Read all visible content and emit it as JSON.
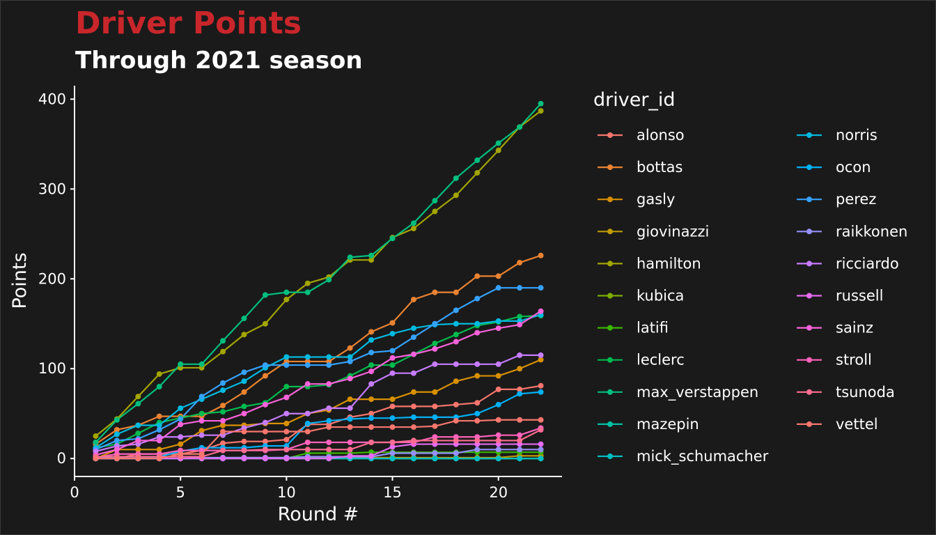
{
  "chart_data": {
    "type": "line",
    "title": "Driver Points",
    "subtitle": "Through 2021 season",
    "xlabel": "Round #",
    "ylabel": "Points",
    "xlim": [
      0,
      23
    ],
    "ylim": [
      -20,
      415
    ],
    "x_ticks": [
      0,
      5,
      10,
      15,
      20
    ],
    "y_ticks": [
      0,
      100,
      200,
      300,
      400
    ],
    "legend_title": "driver_id",
    "legend_position": "right",
    "grid": false,
    "colors": {
      "background": "#1a1a1a",
      "title": "#c8262b",
      "text": "#ffffff",
      "axis": "#ffffff"
    },
    "x": [
      1,
      2,
      3,
      4,
      5,
      6,
      7,
      8,
      9,
      10,
      11,
      12,
      13,
      14,
      15,
      16,
      17,
      18,
      19,
      20,
      21,
      22
    ],
    "series": [
      {
        "name": "alonso",
        "color": "#F8766D",
        "values": [
          0,
          0,
          5,
          5,
          5,
          9,
          17,
          19,
          19,
          21,
          38,
          38,
          46,
          50,
          58,
          58,
          58,
          60,
          62,
          77,
          77,
          81
        ]
      },
      {
        "name": "bottas",
        "color": "#EA8331",
        "values": [
          16,
          32,
          37,
          47,
          47,
          47,
          59,
          74,
          92,
          108,
          108,
          108,
          123,
          141,
          151,
          177,
          185,
          185,
          203,
          203,
          218,
          226
        ]
      },
      {
        "name": "gasly",
        "color": "#D89000",
        "values": [
          0,
          10,
          10,
          10,
          16,
          31,
          37,
          37,
          39,
          39,
          50,
          54,
          66,
          66,
          66,
          74,
          74,
          86,
          92,
          92,
          100,
          110
        ]
      },
      {
        "name": "giovinazzi",
        "color": "#C09B00",
        "values": [
          0,
          0,
          0,
          0,
          0,
          0,
          1,
          1,
          1,
          1,
          1,
          1,
          1,
          1,
          1,
          1,
          1,
          1,
          1,
          1,
          3,
          3
        ]
      },
      {
        "name": "hamilton",
        "color": "#A3A500",
        "values": [
          25,
          44,
          69,
          94,
          101,
          101,
          119,
          138,
          150,
          177,
          195,
          202,
          221,
          221,
          246,
          256,
          275,
          293,
          318,
          343,
          369,
          387
        ]
      },
      {
        "name": "kubica",
        "color": "#7CAE00",
        "values": [
          0,
          0,
          0,
          0,
          0,
          0,
          0,
          0,
          0,
          0,
          0,
          0,
          0,
          0,
          0,
          0,
          0,
          0,
          0,
          0,
          0,
          0
        ]
      },
      {
        "name": "latifi",
        "color": "#39B600",
        "values": [
          0,
          0,
          0,
          0,
          0,
          0,
          0,
          0,
          0,
          0,
          6,
          6,
          6,
          7,
          7,
          7,
          7,
          7,
          7,
          7,
          7,
          7
        ]
      },
      {
        "name": "leclerc",
        "color": "#00BB4E",
        "values": [
          12,
          16,
          28,
          40,
          45,
          50,
          52,
          58,
          62,
          80,
          80,
          82,
          92,
          104,
          104,
          116,
          128,
          138,
          148,
          152,
          158,
          159
        ]
      },
      {
        "name": "max_verstappen",
        "color": "#00BF7D",
        "values": [
          18,
          43,
          61,
          80,
          105,
          105,
          131,
          156,
          182,
          185,
          185,
          199,
          224,
          226,
          245,
          262,
          287,
          312,
          332,
          351,
          369,
          395
        ]
      },
      {
        "name": "mazepin",
        "color": "#00C1A3",
        "values": [
          0,
          0,
          0,
          0,
          0,
          0,
          0,
          0,
          0,
          0,
          0,
          0,
          0,
          0,
          0,
          0,
          0,
          0,
          0,
          0,
          0,
          0
        ]
      },
      {
        "name": "mick_schumacher",
        "color": "#00BFC4",
        "values": [
          0,
          0,
          0,
          0,
          0,
          0,
          0,
          0,
          0,
          0,
          0,
          0,
          0,
          0,
          0,
          0,
          0,
          0,
          0,
          0,
          0,
          0
        ]
      },
      {
        "name": "norris",
        "color": "#00BAE0",
        "values": [
          12,
          27,
          37,
          37,
          56,
          66,
          76,
          86,
          101,
          113,
          113,
          113,
          113,
          132,
          139,
          145,
          149,
          150,
          150,
          153,
          153,
          160
        ]
      },
      {
        "name": "ocon",
        "color": "#00B0F6",
        "values": [
          0,
          2,
          2,
          2,
          8,
          12,
          12,
          12,
          14,
          14,
          39,
          42,
          44,
          45,
          45,
          46,
          46,
          46,
          50,
          60,
          72,
          74
        ]
      },
      {
        "name": "perez",
        "color": "#35A2FF",
        "values": [
          10,
          20,
          22,
          32,
          44,
          69,
          84,
          96,
          104,
          104,
          104,
          104,
          108,
          118,
          120,
          135,
          150,
          165,
          178,
          190,
          190,
          190
        ]
      },
      {
        "name": "raikkonen",
        "color": "#9590FF",
        "values": [
          0,
          0,
          0,
          0,
          0,
          1,
          1,
          1,
          1,
          1,
          2,
          2,
          2,
          2,
          6,
          6,
          6,
          6,
          10,
          10,
          10,
          10
        ]
      },
      {
        "name": "ricciardo",
        "color": "#C77CFF",
        "values": [
          8,
          14,
          16,
          24,
          24,
          26,
          26,
          34,
          40,
          50,
          50,
          56,
          56,
          83,
          95,
          95,
          105,
          105,
          105,
          105,
          115,
          115
        ]
      },
      {
        "name": "russell",
        "color": "#E76BF3",
        "values": [
          0,
          0,
          0,
          0,
          0,
          0,
          0,
          0,
          0,
          0,
          0,
          0,
          3,
          3,
          13,
          16,
          16,
          16,
          16,
          16,
          16,
          16
        ]
      },
      {
        "name": "sainz",
        "color": "#FA62DB",
        "values": [
          4,
          10,
          20,
          20,
          38,
          42,
          42,
          50,
          60,
          68,
          83,
          83,
          89,
          97,
          112,
          116,
          122,
          130,
          140,
          145,
          149,
          164
        ]
      },
      {
        "name": "stroll",
        "color": "#FF62BC",
        "values": [
          1,
          5,
          5,
          5,
          9,
          9,
          9,
          9,
          9,
          10,
          18,
          18,
          18,
          18,
          18,
          18,
          24,
          24,
          24,
          26,
          26,
          34
        ]
      },
      {
        "name": "tsunoda",
        "color": "#FF6C91",
        "values": [
          2,
          2,
          2,
          2,
          2,
          2,
          9,
          9,
          10,
          10,
          10,
          10,
          10,
          18,
          18,
          20,
          20,
          20,
          20,
          20,
          20,
          32
        ]
      },
      {
        "name": "vettel",
        "color": "#F8766D",
        "values": [
          0,
          0,
          0,
          0,
          5,
          5,
          30,
          30,
          30,
          30,
          30,
          35,
          35,
          35,
          35,
          35,
          36,
          42,
          42,
          43,
          43,
          43
        ]
      }
    ]
  }
}
